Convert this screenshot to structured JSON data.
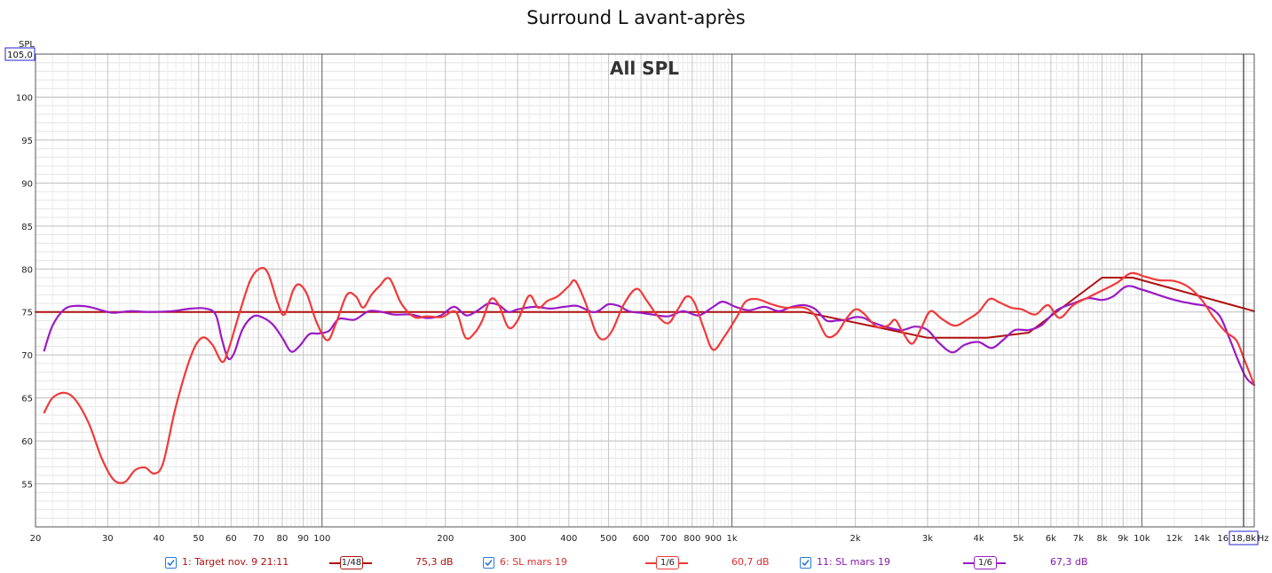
{
  "title": "Surround L avant-après",
  "chart_data": {
    "type": "line",
    "annotation": "All SPL",
    "ylabel": "SPL",
    "xunit": "Hz",
    "xscale": "log",
    "xlim": [
      20,
      18800
    ],
    "ylim": [
      50,
      105
    ],
    "ytop_label": "105,0",
    "xright_label": "18,8k",
    "yticks": [
      "55",
      "60",
      "65",
      "70",
      "75",
      "80",
      "85",
      "90",
      "95",
      "100"
    ],
    "xticks": [
      {
        "v": 20,
        "l": "20"
      },
      {
        "v": 30,
        "l": "30"
      },
      {
        "v": 40,
        "l": "40"
      },
      {
        "v": 50,
        "l": "50"
      },
      {
        "v": 60,
        "l": "60"
      },
      {
        "v": 70,
        "l": "70"
      },
      {
        "v": 80,
        "l": "80"
      },
      {
        "v": 90,
        "l": "90"
      },
      {
        "v": 100,
        "l": "100"
      },
      {
        "v": 200,
        "l": "200"
      },
      {
        "v": 300,
        "l": "300"
      },
      {
        "v": 400,
        "l": "400"
      },
      {
        "v": 500,
        "l": "500"
      },
      {
        "v": 600,
        "l": "600"
      },
      {
        "v": 700,
        "l": "700"
      },
      {
        "v": 800,
        "l": "800"
      },
      {
        "v": 900,
        "l": "900"
      },
      {
        "v": 1000,
        "l": "1k"
      },
      {
        "v": 2000,
        "l": "2k"
      },
      {
        "v": 3000,
        "l": "3k"
      },
      {
        "v": 4000,
        "l": "4k"
      },
      {
        "v": 5000,
        "l": "5k"
      },
      {
        "v": 6000,
        "l": "6k"
      },
      {
        "v": 7000,
        "l": "7k"
      },
      {
        "v": 8000,
        "l": "8k"
      },
      {
        "v": 9000,
        "l": "9k"
      },
      {
        "v": 10000,
        "l": "10k"
      },
      {
        "v": 12000,
        "l": "12k"
      },
      {
        "v": 14000,
        "l": "14k"
      },
      {
        "v": 16000,
        "l": "16k"
      }
    ],
    "grid": true,
    "series": [
      {
        "name": "1: Target nov. 9 21:11",
        "color": "#b01010",
        "smoothing": "1/48",
        "value_label": "75,3 dB",
        "points": [
          [
            20,
            75
          ],
          [
            1500,
            75
          ],
          [
            3000,
            72
          ],
          [
            4200,
            72
          ],
          [
            5300,
            72.6
          ],
          [
            8000,
            79
          ],
          [
            9500,
            79
          ],
          [
            18800,
            75.1
          ]
        ]
      },
      {
        "name": "6: SL mars 19",
        "color": "#f03a3a",
        "smoothing": "1/6",
        "value_label": "60,7 dB",
        "points": [
          [
            21,
            63.3
          ],
          [
            22,
            65
          ],
          [
            23.5,
            65.6
          ],
          [
            25,
            64.8
          ],
          [
            27,
            62
          ],
          [
            29,
            58
          ],
          [
            31,
            55.5
          ],
          [
            33,
            55.2
          ],
          [
            35,
            56.6
          ],
          [
            37,
            56.9
          ],
          [
            39,
            56.2
          ],
          [
            41,
            57.5
          ],
          [
            44,
            64
          ],
          [
            48,
            70
          ],
          [
            51,
            72
          ],
          [
            54,
            71.2
          ],
          [
            57,
            69.2
          ],
          [
            59,
            70.5
          ],
          [
            63,
            75
          ],
          [
            67,
            78.8
          ],
          [
            71,
            80.1
          ],
          [
            74,
            79.4
          ],
          [
            78,
            76
          ],
          [
            81,
            74.7
          ],
          [
            85,
            77.5
          ],
          [
            88,
            78.2
          ],
          [
            92,
            77
          ],
          [
            97,
            73.8
          ],
          [
            103,
            71.7
          ],
          [
            108,
            73.6
          ],
          [
            115,
            77
          ],
          [
            121,
            76.8
          ],
          [
            126,
            75.5
          ],
          [
            132,
            77
          ],
          [
            138,
            78
          ],
          [
            146,
            78.9
          ],
          [
            156,
            76
          ],
          [
            168,
            74.4
          ],
          [
            180,
            74.5
          ],
          [
            196,
            74.4
          ],
          [
            212,
            75
          ],
          [
            224,
            72
          ],
          [
            236,
            72.6
          ],
          [
            246,
            74
          ],
          [
            258,
            76.5
          ],
          [
            270,
            75.8
          ],
          [
            285,
            73.2
          ],
          [
            300,
            74
          ],
          [
            320,
            76.9
          ],
          [
            337,
            75.5
          ],
          [
            355,
            76.3
          ],
          [
            375,
            76.8
          ],
          [
            400,
            78
          ],
          [
            415,
            78.6
          ],
          [
            440,
            76
          ],
          [
            465,
            72.7
          ],
          [
            485,
            71.8
          ],
          [
            510,
            72.8
          ],
          [
            545,
            75.9
          ],
          [
            585,
            77.7
          ],
          [
            620,
            76.3
          ],
          [
            660,
            74.5
          ],
          [
            700,
            73.7
          ],
          [
            740,
            75.4
          ],
          [
            775,
            76.8
          ],
          [
            810,
            76.1
          ],
          [
            855,
            73
          ],
          [
            900,
            70.6
          ],
          [
            960,
            72.2
          ],
          [
            1030,
            74.5
          ],
          [
            1080,
            76.2
          ],
          [
            1150,
            76.5
          ],
          [
            1250,
            75.9
          ],
          [
            1350,
            75.5
          ],
          [
            1500,
            75.5
          ],
          [
            1600,
            74.5
          ],
          [
            1700,
            72.2
          ],
          [
            1800,
            72.5
          ],
          [
            1900,
            74.2
          ],
          [
            2000,
            75.3
          ],
          [
            2100,
            74.8
          ],
          [
            2250,
            73.3
          ],
          [
            2400,
            73.4
          ],
          [
            2500,
            74.1
          ],
          [
            2600,
            72.8
          ],
          [
            2750,
            71.3
          ],
          [
            2900,
            73.2
          ],
          [
            3050,
            75.1
          ],
          [
            3250,
            74.2
          ],
          [
            3500,
            73.4
          ],
          [
            3750,
            74.1
          ],
          [
            4000,
            75
          ],
          [
            4250,
            76.5
          ],
          [
            4500,
            76.1
          ],
          [
            4800,
            75.5
          ],
          [
            5100,
            75.3
          ],
          [
            5500,
            74.7
          ],
          [
            5900,
            75.8
          ],
          [
            6300,
            74.3
          ],
          [
            6800,
            75.8
          ],
          [
            7400,
            76.7
          ],
          [
            8000,
            77.5
          ],
          [
            8700,
            78.4
          ],
          [
            9400,
            79.5
          ],
          [
            10200,
            79.1
          ],
          [
            11000,
            78.7
          ],
          [
            12000,
            78.6
          ],
          [
            13000,
            77.9
          ],
          [
            14000,
            76.4
          ],
          [
            15000,
            74.3
          ],
          [
            16000,
            72.7
          ],
          [
            17000,
            71.7
          ],
          [
            17800,
            69.4
          ],
          [
            18800,
            66.5
          ]
        ]
      },
      {
        "name": "11: SL mars 19",
        "color": "#9b1ac4",
        "smoothing": "1/6",
        "value_label": "67,3 dB",
        "points": [
          [
            21,
            70.5
          ],
          [
            22,
            73.4
          ],
          [
            23.5,
            75.3
          ],
          [
            25,
            75.7
          ],
          [
            27,
            75.6
          ],
          [
            29,
            75.2
          ],
          [
            31,
            74.9
          ],
          [
            34,
            75.1
          ],
          [
            38,
            75
          ],
          [
            43,
            75.1
          ],
          [
            48,
            75.4
          ],
          [
            52,
            75.4
          ],
          [
            55,
            74.7
          ],
          [
            57,
            71.8
          ],
          [
            59,
            69.6
          ],
          [
            61,
            70.2
          ],
          [
            64,
            73
          ],
          [
            68,
            74.5
          ],
          [
            72,
            74.3
          ],
          [
            76,
            73.5
          ],
          [
            80,
            72
          ],
          [
            84,
            70.4
          ],
          [
            88,
            71
          ],
          [
            93,
            72.4
          ],
          [
            98,
            72.5
          ],
          [
            104,
            72.8
          ],
          [
            110,
            74.2
          ],
          [
            120,
            74.1
          ],
          [
            130,
            75.1
          ],
          [
            140,
            75
          ],
          [
            150,
            74.7
          ],
          [
            165,
            74.7
          ],
          [
            180,
            74.3
          ],
          [
            195,
            74.6
          ],
          [
            210,
            75.6
          ],
          [
            225,
            74.6
          ],
          [
            240,
            75.2
          ],
          [
            255,
            76
          ],
          [
            270,
            75.8
          ],
          [
            285,
            75
          ],
          [
            300,
            75.3
          ],
          [
            330,
            75.6
          ],
          [
            360,
            75.4
          ],
          [
            390,
            75.6
          ],
          [
            420,
            75.7
          ],
          [
            455,
            75
          ],
          [
            475,
            75.2
          ],
          [
            500,
            75.9
          ],
          [
            530,
            75.7
          ],
          [
            560,
            75.1
          ],
          [
            600,
            74.9
          ],
          [
            640,
            74.7
          ],
          [
            700,
            74.5
          ],
          [
            760,
            75.1
          ],
          [
            830,
            74.6
          ],
          [
            900,
            75.6
          ],
          [
            950,
            76.2
          ],
          [
            1020,
            75.6
          ],
          [
            1100,
            75.2
          ],
          [
            1200,
            75.6
          ],
          [
            1300,
            75.1
          ],
          [
            1400,
            75.6
          ],
          [
            1500,
            75.8
          ],
          [
            1600,
            75.3
          ],
          [
            1700,
            74
          ],
          [
            1800,
            74
          ],
          [
            1900,
            74.1
          ],
          [
            2000,
            74.4
          ],
          [
            2100,
            74.3
          ],
          [
            2200,
            73.8
          ],
          [
            2400,
            73.2
          ],
          [
            2600,
            72.9
          ],
          [
            2800,
            73.3
          ],
          [
            3000,
            72.9
          ],
          [
            3200,
            71.4
          ],
          [
            3450,
            70.3
          ],
          [
            3700,
            71.2
          ],
          [
            4000,
            71.5
          ],
          [
            4300,
            70.8
          ],
          [
            4600,
            71.8
          ],
          [
            4900,
            72.9
          ],
          [
            5300,
            72.9
          ],
          [
            5700,
            73.5
          ],
          [
            6200,
            75.2
          ],
          [
            6800,
            76
          ],
          [
            7400,
            76.6
          ],
          [
            8000,
            76.4
          ],
          [
            8500,
            76.8
          ],
          [
            9200,
            78
          ],
          [
            10000,
            77.6
          ],
          [
            10800,
            77.1
          ],
          [
            11600,
            76.6
          ],
          [
            12500,
            76.2
          ],
          [
            13500,
            75.9
          ],
          [
            14500,
            75.6
          ],
          [
            15500,
            74.5
          ],
          [
            16300,
            72.1
          ],
          [
            17200,
            69.3
          ],
          [
            18000,
            67.3
          ],
          [
            18800,
            66.5
          ]
        ]
      }
    ]
  }
}
